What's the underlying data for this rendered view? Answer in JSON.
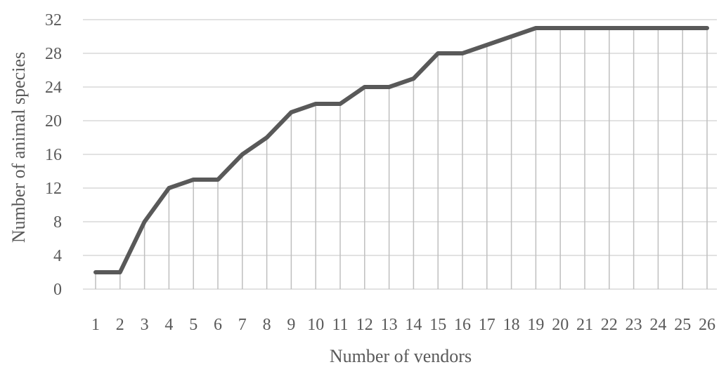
{
  "chart_data": {
    "type": "line",
    "title": "",
    "xlabel": "Number of vendors",
    "ylabel": "Number of animal species",
    "x": [
      "1",
      "2",
      "3",
      "4",
      "5",
      "6",
      "7",
      "8",
      "9",
      "10",
      "11",
      "12",
      "13",
      "14",
      "15",
      "16",
      "17",
      "18",
      "19",
      "20",
      "21",
      "22",
      "23",
      "24",
      "25",
      "26"
    ],
    "series": [
      {
        "values": [
          2,
          2,
          8,
          12,
          13,
          13,
          16,
          18,
          21,
          22,
          22,
          24,
          24,
          25,
          28,
          28,
          29,
          30,
          31,
          31,
          31,
          31,
          31,
          31,
          31,
          31
        ]
      }
    ],
    "ylim": [
      0,
      32
    ],
    "yticks": [
      0,
      4,
      8,
      12,
      16,
      20,
      24,
      28,
      32
    ],
    "grid": true,
    "drop_lines": true,
    "legend": "none",
    "colors": {
      "line": "#595959",
      "grid": "#d9d9d9",
      "drop_line": "#bfbfbf",
      "text": "#595959"
    }
  }
}
